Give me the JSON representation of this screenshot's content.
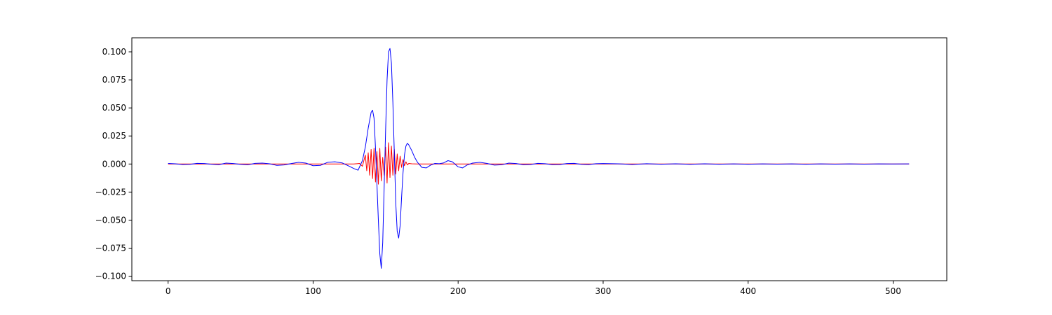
{
  "chart_data": {
    "type": "line",
    "title": "",
    "xlabel": "",
    "ylabel": "",
    "xlim": [
      -25,
      537
    ],
    "ylim": [
      -0.104,
      0.1125
    ],
    "grid": false,
    "legend": "none",
    "x_ticks": [
      0,
      100,
      200,
      300,
      400,
      500
    ],
    "x_tick_labels": [
      "0",
      "100",
      "200",
      "300",
      "400",
      "500"
    ],
    "y_ticks": [
      -0.1,
      -0.075,
      -0.05,
      -0.025,
      0.0,
      0.025,
      0.05,
      0.075,
      0.1
    ],
    "y_tick_labels": [
      "−0.100",
      "−0.075",
      "−0.050",
      "−0.025",
      "0.000",
      "0.025",
      "0.050",
      "0.075",
      "0.100"
    ],
    "series": [
      {
        "color": "#0000ff",
        "x": [
          0,
          5,
          10,
          15,
          20,
          25,
          30,
          35,
          40,
          45,
          50,
          55,
          60,
          65,
          70,
          75,
          80,
          85,
          90,
          95,
          100,
          105,
          110,
          115,
          120,
          125,
          128,
          131,
          134,
          136,
          138,
          140,
          141,
          142,
          143,
          145,
          146,
          147,
          148,
          149,
          150,
          151,
          152,
          153,
          154,
          155,
          156,
          157,
          158,
          159,
          160,
          161,
          162,
          163,
          164,
          165,
          166,
          168,
          170,
          172,
          175,
          178,
          181,
          184,
          187,
          190,
          193,
          196,
          200,
          203,
          206,
          210,
          215,
          220,
          225,
          230,
          235,
          240,
          245,
          250,
          255,
          260,
          265,
          270,
          275,
          280,
          285,
          290,
          295,
          300,
          310,
          320,
          330,
          340,
          350,
          360,
          370,
          380,
          390,
          400,
          410,
          420,
          430,
          440,
          450,
          460,
          470,
          480,
          490,
          500,
          511
        ],
        "y": [
          0.0005,
          0.0002,
          -0.0004,
          -0.0003,
          0.0006,
          0.0004,
          -0.0002,
          -0.0006,
          0.0008,
          0.0004,
          -0.0003,
          -0.0007,
          0.0006,
          0.0008,
          0.0002,
          -0.0012,
          -0.0008,
          0.0004,
          0.0015,
          0.0008,
          -0.0015,
          -0.0012,
          0.0015,
          0.002,
          0.001,
          -0.002,
          -0.004,
          -0.0055,
          0.003,
          0.015,
          0.032,
          0.046,
          0.048,
          0.041,
          0.015,
          -0.05,
          -0.08,
          -0.093,
          -0.07,
          -0.02,
          0.03,
          0.075,
          0.1,
          0.103,
          0.09,
          0.055,
          0.01,
          -0.035,
          -0.06,
          -0.066,
          -0.055,
          -0.03,
          -0.008,
          0.008,
          0.016,
          0.0185,
          0.017,
          0.012,
          0.006,
          0.0015,
          -0.003,
          -0.0035,
          -0.001,
          0.0005,
          0.0003,
          0.001,
          0.003,
          0.002,
          -0.0025,
          -0.0035,
          -0.001,
          0.0008,
          0.0015,
          0.0005,
          -0.001,
          -0.0007,
          0.0008,
          0.0004,
          -0.0007,
          -0.0004,
          0.0006,
          0.0003,
          -0.0006,
          -0.0005,
          0.0004,
          0.0006,
          -0.0003,
          -0.0005,
          0.0003,
          0.0004,
          0.0002,
          -0.0004,
          0.0003,
          -0.0002,
          0.0002,
          -0.0003,
          0.0002,
          -0.0002,
          0.0001,
          -0.0002,
          0.0001,
          -0.0001,
          0.0001,
          -0.0002,
          0.0001,
          -0.0001,
          0.0001,
          -0.0001,
          0.0001,
          0.0,
          0.0001
        ]
      },
      {
        "color": "#ff0000",
        "x": [
          0,
          20,
          40,
          60,
          80,
          100,
          120,
          128,
          132,
          134,
          135,
          136,
          137,
          138,
          139,
          140,
          141,
          142,
          143,
          144,
          145,
          146,
          147,
          148,
          149,
          150,
          151,
          152,
          153,
          154,
          155,
          156,
          157,
          158,
          159,
          160,
          161,
          162,
          163,
          164,
          165,
          166,
          168,
          172,
          180,
          200,
          250,
          300,
          350,
          400,
          450,
          500,
          511
        ],
        "y": [
          0.0,
          0.0,
          0.0,
          0.0,
          0.0,
          0.0,
          0.0,
          0.0,
          0.0005,
          -0.002,
          0.003,
          0.008,
          -0.006,
          0.01,
          -0.01,
          0.013,
          -0.013,
          0.014,
          -0.016,
          0.011,
          -0.018,
          0.014,
          -0.015,
          0.006,
          -0.01,
          0.015,
          -0.017,
          0.019,
          -0.012,
          0.016,
          -0.01,
          0.013,
          -0.009,
          0.009,
          -0.006,
          0.007,
          -0.003,
          0.004,
          -0.0015,
          0.002,
          -0.0008,
          0.0005,
          0.0002,
          0.0,
          0.0,
          0.0,
          0.0,
          0.0,
          0.0,
          0.0,
          0.0,
          0.0,
          0.0
        ]
      }
    ]
  }
}
